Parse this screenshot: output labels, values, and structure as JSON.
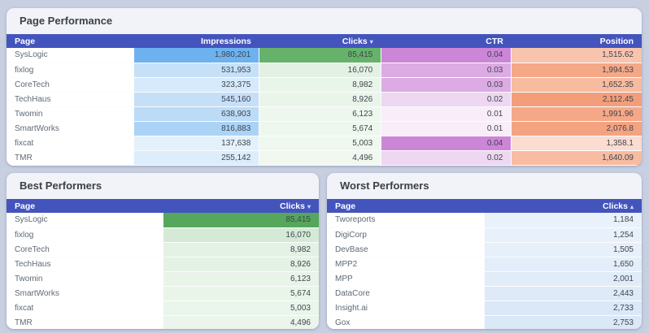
{
  "theme": {
    "page_background": "#c7cfe0",
    "panel_background": "#f1f3f8",
    "table_header_background": "#4454bd",
    "table_header_text": "#ffffff"
  },
  "page_performance": {
    "title": "Page Performance",
    "columns": [
      {
        "key": "page",
        "label": "Page",
        "align": "left",
        "sort": null
      },
      {
        "key": "impressions",
        "label": "Impressions",
        "align": "right",
        "sort": null
      },
      {
        "key": "clicks",
        "label": "Clicks",
        "align": "right",
        "sort": "desc"
      },
      {
        "key": "ctr",
        "label": "CTR",
        "align": "right",
        "sort": null
      },
      {
        "key": "position",
        "label": "Position",
        "align": "right",
        "sort": null
      }
    ],
    "rows": [
      {
        "cells": [
          {
            "v": "SysLogic",
            "bg": "#ffffff"
          },
          {
            "v": "1,980,201",
            "bg": "#6db2ef"
          },
          {
            "v": "85,415",
            "bg": "#66b26b"
          },
          {
            "v": "0.04",
            "bg": "#cd85d8"
          },
          {
            "v": "1,515.62",
            "bg": "#f8c4ae"
          }
        ]
      },
      {
        "cells": [
          {
            "v": "fixlog",
            "bg": "#ffffff"
          },
          {
            "v": "531,953",
            "bg": "#c6e0f8"
          },
          {
            "v": "16,070",
            "bg": "#e3f1e4"
          },
          {
            "v": "0.03",
            "bg": "#dcabe3"
          },
          {
            "v": "1,994.53",
            "bg": "#f5a888"
          }
        ]
      },
      {
        "cells": [
          {
            "v": "CoreTech",
            "bg": "#ffffff"
          },
          {
            "v": "323,375",
            "bg": "#d7eafb"
          },
          {
            "v": "8,982",
            "bg": "#eaf5ea"
          },
          {
            "v": "0.03",
            "bg": "#dcabe3"
          },
          {
            "v": "1,652.35",
            "bg": "#f7bb9f"
          }
        ]
      },
      {
        "cells": [
          {
            "v": "TechHaus",
            "bg": "#ffffff"
          },
          {
            "v": "545,160",
            "bg": "#c5dff8"
          },
          {
            "v": "8,926",
            "bg": "#eaf5ea"
          },
          {
            "v": "0.02",
            "bg": "#eed7f1"
          },
          {
            "v": "2,112.45",
            "bg": "#f39e7b"
          }
        ]
      },
      {
        "cells": [
          {
            "v": "Twomin",
            "bg": "#ffffff"
          },
          {
            "v": "638,903",
            "bg": "#bcdbf7"
          },
          {
            "v": "6,123",
            "bg": "#edf7ed"
          },
          {
            "v": "0.01",
            "bg": "#f8edf9"
          },
          {
            "v": "1,991.96",
            "bg": "#f5a888"
          }
        ]
      },
      {
        "cells": [
          {
            "v": "SmartWorks",
            "bg": "#ffffff"
          },
          {
            "v": "816,883",
            "bg": "#abd3f5"
          },
          {
            "v": "5,674",
            "bg": "#eef7ee"
          },
          {
            "v": "0.01",
            "bg": "#f8edf9"
          },
          {
            "v": "2,076.8",
            "bg": "#f4a381"
          }
        ]
      },
      {
        "cells": [
          {
            "v": "fixcat",
            "bg": "#ffffff"
          },
          {
            "v": "137,638",
            "bg": "#e3f1fc"
          },
          {
            "v": "5,003",
            "bg": "#eff8ef"
          },
          {
            "v": "0.04",
            "bg": "#cd85d8"
          },
          {
            "v": "1,358.1",
            "bg": "#fbdcd0"
          }
        ]
      },
      {
        "cells": [
          {
            "v": "TMR",
            "bg": "#ffffff"
          },
          {
            "v": "255,142",
            "bg": "#dcedfb"
          },
          {
            "v": "4,496",
            "bg": "#f0f8f0"
          },
          {
            "v": "0.02",
            "bg": "#eed7f1"
          },
          {
            "v": "1,640.09",
            "bg": "#f7bca1"
          }
        ]
      }
    ]
  },
  "best_performers": {
    "title": "Best Performers",
    "columns": [
      {
        "key": "page",
        "label": "Page",
        "align": "left",
        "sort": null
      },
      {
        "key": "clicks",
        "label": "Clicks",
        "align": "right",
        "sort": "desc"
      }
    ],
    "rows": [
      {
        "cells": [
          {
            "v": "SysLogic",
            "bg": "#ffffff"
          },
          {
            "v": "85,415",
            "bg": "#55a75b"
          }
        ]
      },
      {
        "cells": [
          {
            "v": "fixlog",
            "bg": "#ffffff"
          },
          {
            "v": "16,070",
            "bg": "#d5ead6"
          }
        ]
      },
      {
        "cells": [
          {
            "v": "CoreTech",
            "bg": "#ffffff"
          },
          {
            "v": "8,982",
            "bg": "#e4f1e5"
          }
        ]
      },
      {
        "cells": [
          {
            "v": "TechHaus",
            "bg": "#ffffff"
          },
          {
            "v": "8,926",
            "bg": "#e4f1e5"
          }
        ]
      },
      {
        "cells": [
          {
            "v": "Twomin",
            "bg": "#ffffff"
          },
          {
            "v": "6,123",
            "bg": "#e9f4e9"
          }
        ]
      },
      {
        "cells": [
          {
            "v": "SmartWorks",
            "bg": "#ffffff"
          },
          {
            "v": "5,674",
            "bg": "#eaf5ea"
          }
        ]
      },
      {
        "cells": [
          {
            "v": "fixcat",
            "bg": "#ffffff"
          },
          {
            "v": "5,003",
            "bg": "#eaf5eb"
          }
        ]
      },
      {
        "cells": [
          {
            "v": "TMR",
            "bg": "#ffffff"
          },
          {
            "v": "4,496",
            "bg": "#ebf5eb"
          }
        ]
      }
    ]
  },
  "worst_performers": {
    "title": "Worst Performers",
    "columns": [
      {
        "key": "page",
        "label": "Page",
        "align": "left",
        "sort": null
      },
      {
        "key": "clicks",
        "label": "Clicks",
        "align": "right",
        "sort": "asc"
      }
    ],
    "rows": [
      {
        "cells": [
          {
            "v": "Tworeports",
            "bg": "#ffffff"
          },
          {
            "v": "1,184",
            "bg": "#e9f1fb"
          }
        ]
      },
      {
        "cells": [
          {
            "v": "DigiCorp",
            "bg": "#ffffff"
          },
          {
            "v": "1,254",
            "bg": "#e8f1fb"
          }
        ]
      },
      {
        "cells": [
          {
            "v": "DevBase",
            "bg": "#ffffff"
          },
          {
            "v": "1,505",
            "bg": "#e6effa"
          }
        ]
      },
      {
        "cells": [
          {
            "v": "MPP2",
            "bg": "#ffffff"
          },
          {
            "v": "1,650",
            "bg": "#e4eefa"
          }
        ]
      },
      {
        "cells": [
          {
            "v": "MPP",
            "bg": "#ffffff"
          },
          {
            "v": "2,001",
            "bg": "#e1ecf9"
          }
        ]
      },
      {
        "cells": [
          {
            "v": "DataCore",
            "bg": "#ffffff"
          },
          {
            "v": "2,443",
            "bg": "#deeaf8"
          }
        ]
      },
      {
        "cells": [
          {
            "v": "Insight.ai",
            "bg": "#ffffff"
          },
          {
            "v": "2,733",
            "bg": "#dbe8f7"
          }
        ]
      },
      {
        "cells": [
          {
            "v": "Gox",
            "bg": "#ffffff"
          },
          {
            "v": "2,753",
            "bg": "#dbe8f7"
          }
        ]
      }
    ]
  },
  "icons": {
    "sort_desc": "▾",
    "sort_asc": "▴"
  }
}
